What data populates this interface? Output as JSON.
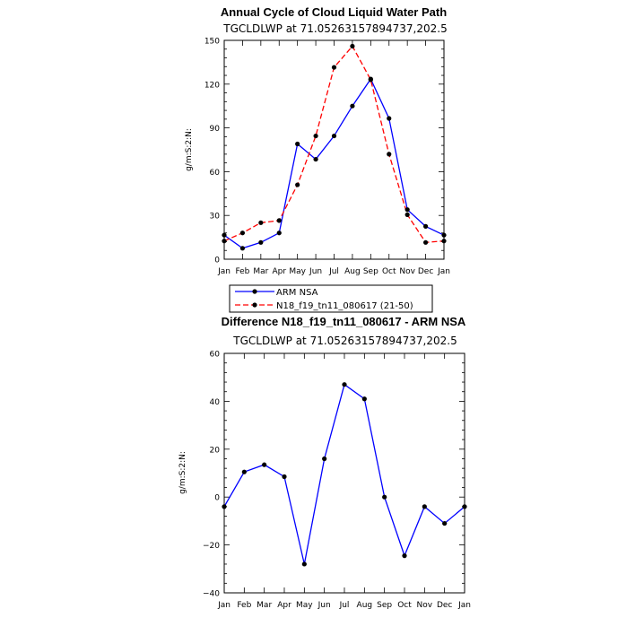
{
  "chart_data": [
    {
      "type": "line",
      "title": "Annual Cycle of Cloud Liquid Water Path",
      "subtitle": "TGCLDLWP at 71.05263157894737,202.5",
      "xlabel": "",
      "ylabel": "g/m:S:2:N:",
      "categories": [
        "Jan",
        "Feb",
        "Mar",
        "Apr",
        "May",
        "Jun",
        "Jul",
        "Aug",
        "Sep",
        "Oct",
        "Nov",
        "Dec",
        "Jan"
      ],
      "ylim": [
        0,
        150
      ],
      "yticks": [
        0,
        30,
        60,
        90,
        120,
        150
      ],
      "series": [
        {
          "name": "ARM NSA",
          "color": "#0000ff",
          "dash": "solid",
          "values": [
            16.5,
            7.5,
            11.5,
            18,
            79,
            68.5,
            84.5,
            105,
            123.5,
            96.5,
            34,
            22.5,
            16.5
          ]
        },
        {
          "name": "N18_f19_tn11_080617 (21-50)",
          "color": "#ff0000",
          "dash": "dashed",
          "values": [
            12.5,
            18,
            25,
            26.5,
            51,
            84.5,
            131.5,
            146,
            123,
            72,
            30.5,
            11.5,
            12.5
          ]
        }
      ],
      "legend": "bottom"
    },
    {
      "type": "line",
      "title": "Difference N18_f19_tn11_080617 - ARM NSA",
      "subtitle": "TGCLDLWP at 71.05263157894737,202.5",
      "xlabel": "",
      "ylabel": "g/m:S:2:N:",
      "categories": [
        "Jan",
        "Feb",
        "Mar",
        "Apr",
        "May",
        "Jun",
        "Jul",
        "Aug",
        "Sep",
        "Oct",
        "Nov",
        "Dec",
        "Jan"
      ],
      "ylim": [
        -40,
        60
      ],
      "yticks": [
        -40,
        -20,
        0,
        20,
        40,
        60
      ],
      "series": [
        {
          "color": "#0000ff",
          "dash": "solid",
          "values": [
            -4,
            10.5,
            13.5,
            8.5,
            -28,
            16,
            47,
            41,
            0,
            -24.5,
            -4,
            -11,
            -4
          ]
        }
      ]
    }
  ],
  "colors": {
    "obs": "#0000ff",
    "model": "#ff0000",
    "marker": "#000000"
  }
}
